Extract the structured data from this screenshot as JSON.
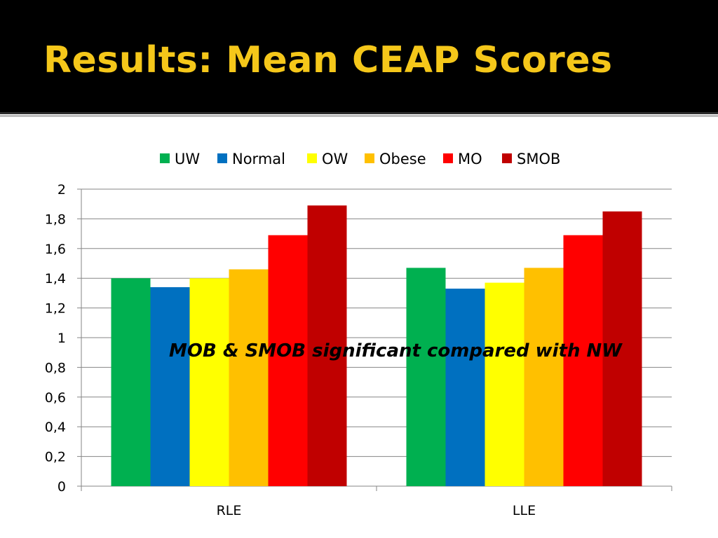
{
  "slide": {
    "title": "Results:  Mean CEAP Scores",
    "annotation": "MOB & SMOB  significant compared with NW"
  },
  "colors": {
    "title_bar": "#000000",
    "title_text": "#f5c71a"
  },
  "chart_data": {
    "type": "bar",
    "categories": [
      "RLE",
      "LLE"
    ],
    "series": [
      {
        "name": "UW",
        "color": "#00b050",
        "values": [
          1.4,
          1.47
        ]
      },
      {
        "name": "Normal",
        "color": "#0070c0",
        "values": [
          1.34,
          1.33
        ]
      },
      {
        "name": "OW",
        "color": "#ffff00",
        "values": [
          1.4,
          1.37
        ]
      },
      {
        "name": "Obese",
        "color": "#ffc000",
        "values": [
          1.46,
          1.47
        ]
      },
      {
        "name": "MO",
        "color": "#ff0000",
        "values": [
          1.69,
          1.69
        ]
      },
      {
        "name": "SMOB",
        "color": "#c00000",
        "values": [
          1.89,
          1.85
        ]
      }
    ],
    "yticks": [
      "0",
      "0,2",
      "0,4",
      "0,6",
      "0,8",
      "1",
      "1,2",
      "1,4",
      "1,6",
      "1,8",
      "2"
    ],
    "ylim": [
      0,
      2
    ],
    "grid": true,
    "legend_position": "top"
  }
}
